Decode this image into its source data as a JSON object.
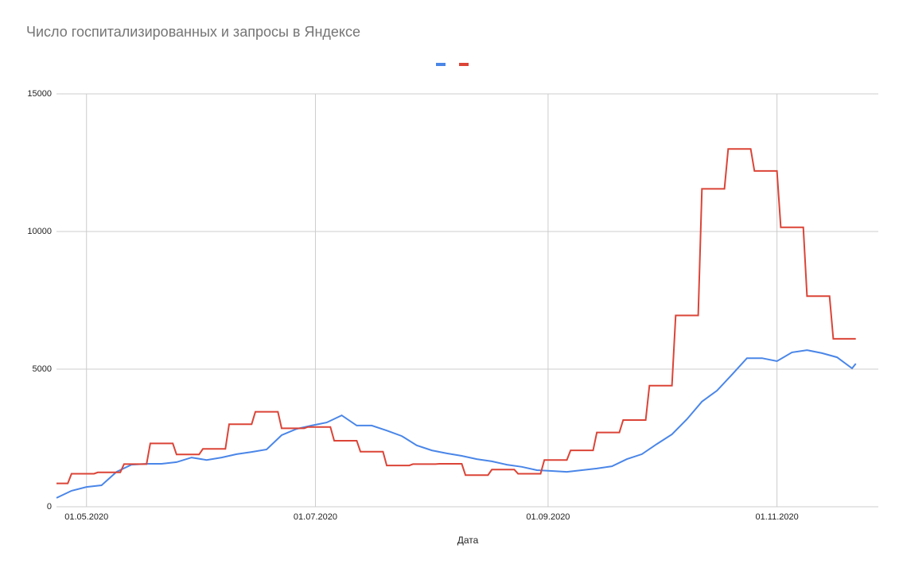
{
  "chart_data": {
    "type": "line",
    "title": "Число госпитализированных и запросы в Яндексе",
    "x_label": "Дата",
    "xlim": [
      "23.04.2020",
      "28.11.2020"
    ],
    "xticks": [
      "01.05.2020",
      "01.07.2020",
      "01.09.2020",
      "01.11.2020"
    ],
    "ylim": [
      0,
      15000
    ],
    "yticks": [
      0,
      5000,
      10000,
      15000
    ],
    "grid": true,
    "series": [
      {
        "color": "#4a86e8",
        "x": [
          "23.04.2020",
          "27.04.2020",
          "01.05.2020",
          "05.05.2020",
          "09.05.2020",
          "13.05.2020",
          "17.05.2020",
          "21.05.2020",
          "25.05.2020",
          "29.05.2020",
          "02.06.2020",
          "06.06.2020",
          "10.06.2020",
          "14.06.2020",
          "18.06.2020",
          "22.06.2020",
          "26.06.2020",
          "30.06.2020",
          "04.07.2020",
          "08.07.2020",
          "12.07.2020",
          "16.07.2020",
          "20.07.2020",
          "24.07.2020",
          "28.07.2020",
          "01.08.2020",
          "05.08.2020",
          "09.08.2020",
          "13.08.2020",
          "17.08.2020",
          "21.08.2020",
          "25.08.2020",
          "29.08.2020",
          "02.09.2020",
          "06.09.2020",
          "10.09.2020",
          "14.09.2020",
          "18.09.2020",
          "22.09.2020",
          "26.09.2020",
          "30.09.2020",
          "04.10.2020",
          "08.10.2020",
          "12.10.2020",
          "16.10.2020",
          "20.10.2020",
          "24.10.2020",
          "28.10.2020",
          "01.11.2020",
          "05.11.2020",
          "09.11.2020",
          "13.11.2020",
          "17.11.2020",
          "21.11.2020",
          "22.11.2020"
        ],
        "values": [
          320,
          580,
          720,
          780,
          1270,
          1530,
          1560,
          1560,
          1620,
          1790,
          1700,
          1790,
          1910,
          1990,
          2080,
          2600,
          2830,
          2950,
          3060,
          3320,
          2950,
          2950,
          2770,
          2570,
          2230,
          2050,
          1940,
          1850,
          1730,
          1650,
          1530,
          1450,
          1330,
          1300,
          1270,
          1330,
          1390,
          1470,
          1730,
          1910,
          2280,
          2630,
          3180,
          3820,
          4220,
          4800,
          5400,
          5400,
          5290,
          5610,
          5690,
          5580,
          5430,
          5030,
          5200
        ]
      },
      {
        "color": "#db4437",
        "x": [
          "23.04.2020",
          "26.04.2020",
          "27.04.2020",
          "03.05.2020",
          "04.05.2020",
          "10.05.2020",
          "11.05.2020",
          "17.05.2020",
          "18.05.2020",
          "24.05.2020",
          "25.05.2020",
          "31.05.2020",
          "01.06.2020",
          "07.06.2020",
          "08.06.2020",
          "14.06.2020",
          "15.06.2020",
          "21.06.2020",
          "22.06.2020",
          "28.06.2020",
          "29.06.2020",
          "05.07.2020",
          "06.07.2020",
          "12.07.2020",
          "13.07.2020",
          "19.07.2020",
          "20.07.2020",
          "26.07.2020",
          "27.07.2020",
          "02.08.2020",
          "03.08.2020",
          "09.08.2020",
          "10.08.2020",
          "16.08.2020",
          "17.08.2020",
          "23.08.2020",
          "24.08.2020",
          "30.08.2020",
          "31.08.2020",
          "06.09.2020",
          "07.09.2020",
          "13.09.2020",
          "14.09.2020",
          "20.09.2020",
          "21.09.2020",
          "27.09.2020",
          "28.09.2020",
          "04.10.2020",
          "05.10.2020",
          "11.10.2020",
          "12.10.2020",
          "18.10.2020",
          "19.10.2020",
          "25.10.2020",
          "26.10.2020",
          "01.11.2020",
          "02.11.2020",
          "08.11.2020",
          "09.11.2020",
          "15.11.2020",
          "16.11.2020",
          "22.11.2020"
        ],
        "values": [
          850,
          850,
          1200,
          1200,
          1250,
          1250,
          1550,
          1550,
          2300,
          2300,
          1900,
          1900,
          2100,
          2100,
          3000,
          3000,
          3450,
          3450,
          2850,
          2850,
          2900,
          2900,
          2400,
          2400,
          2000,
          2000,
          1500,
          1500,
          1550,
          1550,
          1560,
          1560,
          1150,
          1150,
          1350,
          1350,
          1200,
          1200,
          1700,
          1700,
          2050,
          2050,
          2700,
          2700,
          3150,
          3150,
          4400,
          4400,
          6950,
          6950,
          11550,
          11550,
          13000,
          13000,
          12200,
          12200,
          10150,
          10150,
          7650,
          7650,
          6100,
          6100
        ]
      }
    ]
  }
}
